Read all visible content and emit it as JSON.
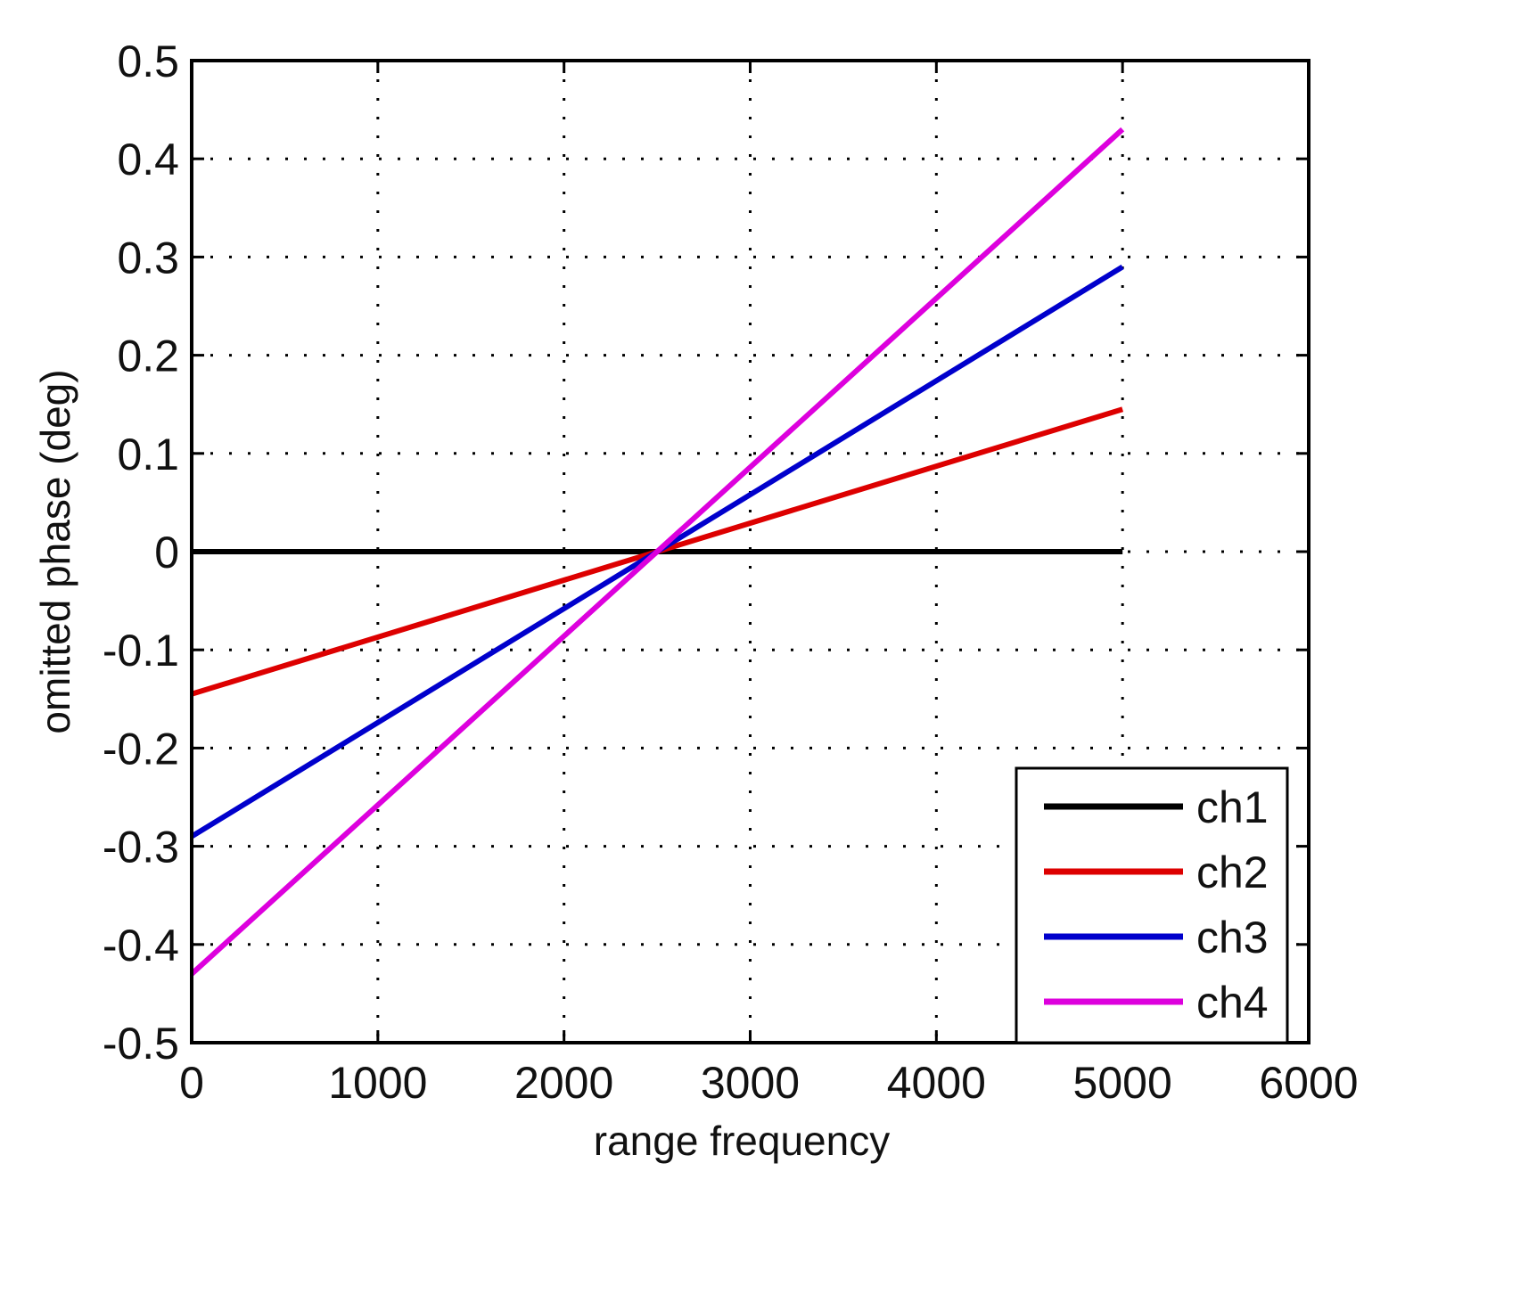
{
  "chart_data": {
    "type": "line",
    "title": "",
    "xlabel": "range frequency",
    "ylabel": "omitted phase (deg)",
    "xlim": [
      0,
      6000
    ],
    "ylim": [
      -0.5,
      0.5
    ],
    "xticks": [
      "0",
      "1000",
      "2000",
      "3000",
      "4000",
      "5000",
      "6000"
    ],
    "yticks": [
      "0.5",
      "0.4",
      "0.3",
      "0.2",
      "0.1",
      "0",
      "-0.1",
      "-0.2",
      "-0.3",
      "-0.4",
      "-0.5"
    ],
    "grid": true,
    "legend_position": "lower right",
    "x": [
      0,
      2500,
      5000
    ],
    "series": [
      {
        "name": "ch1",
        "color": "#000000",
        "values": [
          0,
          0,
          0
        ]
      },
      {
        "name": "ch2",
        "color": "#dd0000",
        "values": [
          -0.145,
          0,
          0.145
        ]
      },
      {
        "name": "ch3",
        "color": "#0000cc",
        "values": [
          -0.29,
          0,
          0.29
        ]
      },
      {
        "name": "ch4",
        "color": "#dd00dd",
        "values": [
          -0.43,
          0,
          0.43
        ]
      }
    ]
  }
}
